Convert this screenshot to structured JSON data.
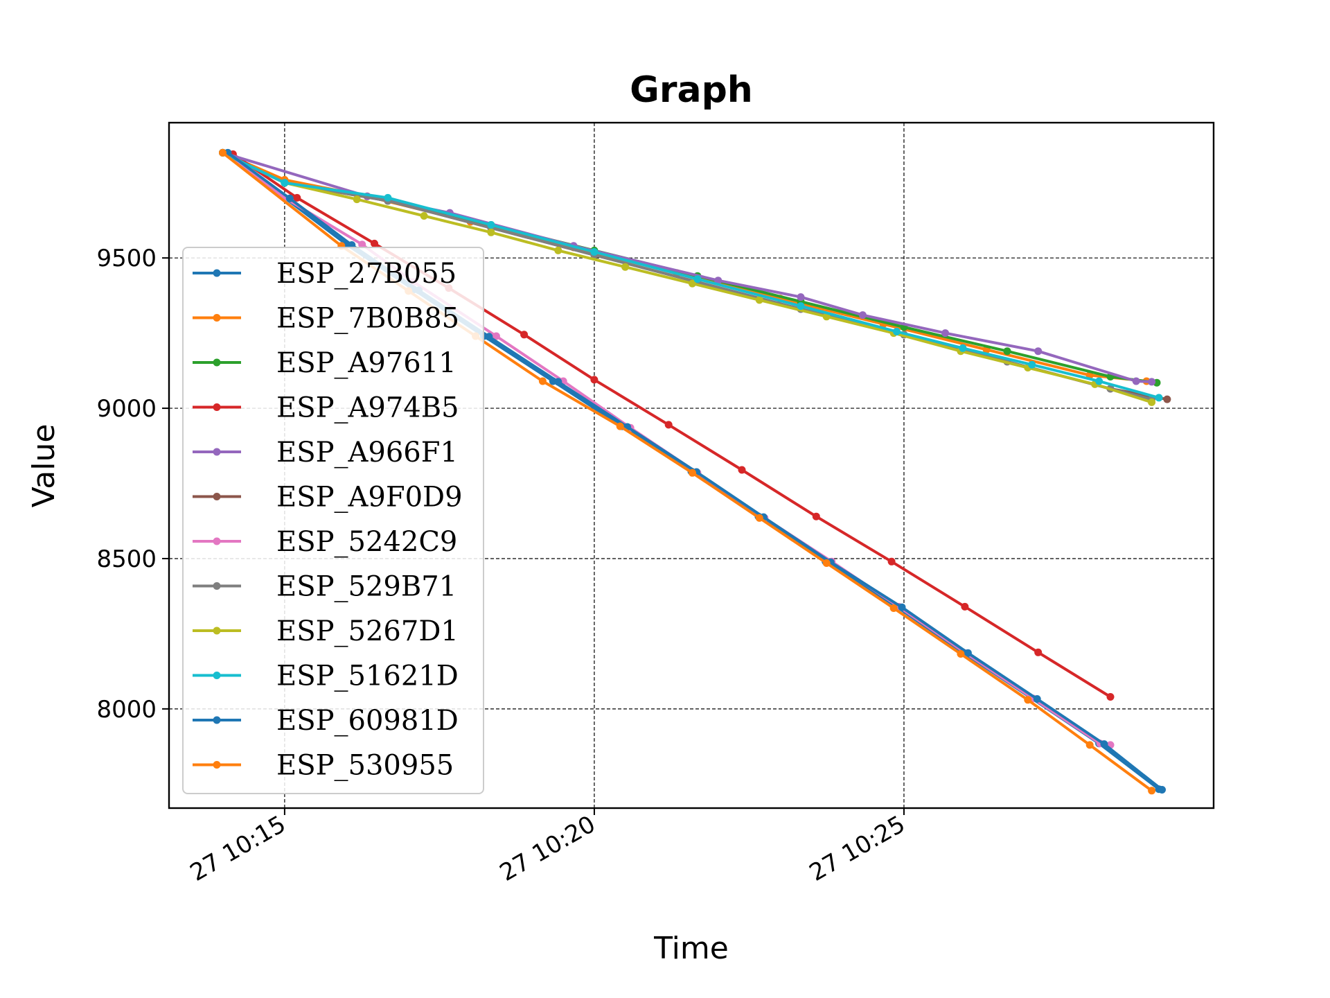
{
  "chart_data": {
    "type": "line",
    "title": "Graph",
    "xlabel": "Time",
    "ylabel": "Value",
    "x_tick_labels": [
      "27 10:15",
      "27 10:20",
      "27 10:25"
    ],
    "y_ticks": [
      8000,
      8500,
      9000,
      9500
    ],
    "y_tick_labels": [
      "8000",
      "8500",
      "9000",
      "9500"
    ],
    "xlim": [
      "10:13:08",
      "10:30:00"
    ],
    "ylim": [
      7670,
      9950
    ],
    "grid": true,
    "legend_position": "center-left",
    "series": [
      {
        "name": "ESP_27B055",
        "color": "#1f77b4",
        "x": [
          "10:14:00",
          "10:15:00",
          "10:16:00",
          "10:17:05",
          "10:18:13",
          "10:19:20",
          "10:20:27",
          "10:21:34",
          "10:22:39",
          "10:23:44",
          "10:24:53",
          "10:25:57",
          "10:27:04",
          "10:28:09",
          "10:29:07"
        ],
        "y": [
          9850,
          9700,
          9545,
          9395,
          9240,
          9090,
          8940,
          8790,
          8640,
          8490,
          8340,
          8188,
          8035,
          7885,
          7733
        ]
      },
      {
        "name": "ESP_7B0B85",
        "color": "#ff7f0e",
        "x": [
          "10:14:00",
          "10:15:00",
          "10:16:20",
          "10:18:00",
          "10:19:40",
          "10:21:20",
          "10:23:00",
          "10:24:40",
          "10:26:20",
          "10:28:00",
          "10:28:55"
        ],
        "y": [
          9850,
          9760,
          9705,
          9620,
          9535,
          9450,
          9365,
          9280,
          9195,
          9110,
          9090
        ]
      },
      {
        "name": "ESP_A97611",
        "color": "#2ca02c",
        "x": [
          "10:14:00",
          "10:15:00",
          "10:16:40",
          "10:18:20",
          "10:20:00",
          "10:21:40",
          "10:23:20",
          "10:25:00",
          "10:26:40",
          "10:28:20",
          "10:29:05"
        ],
        "y": [
          9850,
          9750,
          9695,
          9610,
          9525,
          9440,
          9355,
          9270,
          9190,
          9105,
          9085
        ]
      },
      {
        "name": "ESP_A974B5",
        "color": "#d62728",
        "x": [
          "10:14:10",
          "10:15:12",
          "10:16:27",
          "10:17:39",
          "10:18:52",
          "10:20:00",
          "10:21:12",
          "10:22:23",
          "10:23:35",
          "10:24:48",
          "10:25:59",
          "10:27:10",
          "10:28:20"
        ],
        "y": [
          9845,
          9700,
          9548,
          9400,
          9245,
          9095,
          8945,
          8795,
          8640,
          8490,
          8340,
          8188,
          8040
        ]
      },
      {
        "name": "ESP_A966F1",
        "color": "#9467bd",
        "x": [
          "10:14:00",
          "10:16:20",
          "10:17:40",
          "10:19:40",
          "10:22:00",
          "10:23:20",
          "10:24:20",
          "10:25:40",
          "10:27:10",
          "10:28:45",
          "10:29:00"
        ],
        "y": [
          9850,
          9705,
          9650,
          9540,
          9425,
          9370,
          9310,
          9250,
          9190,
          9090,
          9088
        ]
      },
      {
        "name": "ESP_A9F0D9",
        "color": "#8c564b",
        "x": [
          "10:14:00",
          "10:15:00",
          "10:16:40",
          "10:18:20",
          "10:20:00",
          "10:21:40",
          "10:23:20",
          "10:25:00",
          "10:26:40",
          "10:28:20",
          "10:29:15"
        ],
        "y": [
          9850,
          9750,
          9690,
          9600,
          9510,
          9420,
          9330,
          9245,
          9155,
          9065,
          9030
        ]
      },
      {
        "name": "ESP_5242C9",
        "color": "#e377c2",
        "x": [
          "10:14:00",
          "10:15:00",
          "10:16:15",
          "10:17:05",
          "10:18:25",
          "10:19:30",
          "10:20:35",
          "10:21:40",
          "10:22:45",
          "10:23:50",
          "10:24:55",
          "10:26:00",
          "10:27:05",
          "10:28:10",
          "10:28:20"
        ],
        "y": [
          9850,
          9700,
          9545,
          9420,
          9240,
          9090,
          8935,
          8785,
          8635,
          8490,
          8340,
          8185,
          8035,
          7885,
          7880
        ]
      },
      {
        "name": "ESP_529B71",
        "color": "#7f7f7f",
        "x": [
          "10:14:00",
          "10:15:00",
          "10:16:40",
          "10:18:20",
          "10:20:00",
          "10:21:40",
          "10:23:20",
          "10:25:00",
          "10:26:40",
          "10:28:20",
          "10:29:00"
        ],
        "y": [
          9850,
          9750,
          9690,
          9600,
          9510,
          9420,
          9330,
          9245,
          9155,
          9065,
          9030
        ]
      },
      {
        "name": "ESP_5267D1",
        "color": "#bcbd22",
        "x": [
          "10:14:00",
          "10:15:00",
          "10:16:10",
          "10:17:15",
          "10:18:20",
          "10:19:25",
          "10:20:30",
          "10:21:35",
          "10:22:40",
          "10:23:45",
          "10:24:50",
          "10:25:55",
          "10:27:00",
          "10:28:05",
          "10:29:00"
        ],
        "y": [
          9850,
          9750,
          9695,
          9640,
          9585,
          9525,
          9470,
          9415,
          9360,
          9305,
          9250,
          9190,
          9135,
          9080,
          9020
        ]
      },
      {
        "name": "ESP_51621D",
        "color": "#17becf",
        "x": [
          "10:14:00",
          "10:15:00",
          "10:16:40",
          "10:18:20",
          "10:20:00",
          "10:21:40",
          "10:23:20",
          "10:24:53",
          "10:25:57",
          "10:27:04",
          "10:28:09",
          "10:29:07"
        ],
        "y": [
          9850,
          9750,
          9700,
          9610,
          9520,
          9430,
          9340,
          9255,
          9200,
          9145,
          9090,
          9035
        ]
      },
      {
        "name": "ESP_60981D",
        "color": "#1f77b4",
        "x": [
          "10:14:05",
          "10:15:05",
          "10:16:05",
          "10:17:10",
          "10:18:18",
          "10:19:25",
          "10:20:32",
          "10:21:39",
          "10:22:44",
          "10:23:49",
          "10:24:58",
          "10:26:02",
          "10:27:09",
          "10:28:14",
          "10:29:10"
        ],
        "y": [
          9850,
          9698,
          9543,
          9392,
          9238,
          9088,
          8938,
          8788,
          8638,
          8488,
          8338,
          8186,
          8033,
          7883,
          7731
        ]
      },
      {
        "name": "ESP_530955",
        "color": "#ff7f0e",
        "x": [
          "10:14:00",
          "10:15:55",
          "10:17:00",
          "10:18:05",
          "10:19:10",
          "10:20:25",
          "10:21:35",
          "10:22:40",
          "10:23:45",
          "10:24:50",
          "10:25:55",
          "10:27:00",
          "10:28:00",
          "10:29:00"
        ],
        "y": [
          9850,
          9540,
          9390,
          9240,
          9090,
          8940,
          8785,
          8635,
          8485,
          8335,
          8183,
          8030,
          7880,
          7728
        ]
      }
    ]
  }
}
